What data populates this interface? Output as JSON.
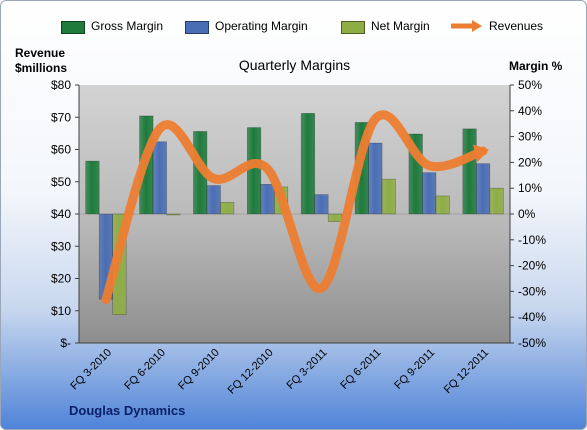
{
  "chart_data": {
    "type": "bar",
    "title": "Quarterly Margins",
    "company_label": "Douglas Dynamics",
    "left_axis_label": [
      "Revenue",
      "$millions"
    ],
    "right_axis_label": "Margin %",
    "categories": [
      "FQ 3-2010",
      "FQ 6-2010",
      "FQ 9-2010",
      "FQ 12-2010",
      "FQ 3-2011",
      "FQ 6-2011",
      "FQ 9-2011",
      "FQ 12-2011"
    ],
    "left_ticks": [
      "$-",
      "$10",
      "$20",
      "$30",
      "$40",
      "$50",
      "$60",
      "$70",
      "$80"
    ],
    "left_ylim": [
      0,
      80
    ],
    "right_ticks": [
      "-50%",
      "-40%",
      "-30%",
      "-20%",
      "-10%",
      "0%",
      "10%",
      "20%",
      "30%",
      "40%",
      "50%"
    ],
    "right_ylim": [
      -50,
      50
    ],
    "grid": false,
    "legend_position": "top",
    "series": [
      {
        "name": "Gross Margin",
        "axis": "right",
        "kind": "bar",
        "color": "#1e7b3c",
        "values": [
          20.5,
          38,
          32,
          33.5,
          39,
          35.5,
          31,
          33
        ]
      },
      {
        "name": "Operating Margin",
        "axis": "right",
        "kind": "bar",
        "color": "#4a6eb5",
        "values": [
          -33,
          28,
          11,
          11.5,
          7.5,
          27.5,
          16,
          19.5
        ]
      },
      {
        "name": "Net Margin",
        "axis": "right",
        "kind": "bar",
        "color": "#8fad45",
        "values": [
          -39,
          0,
          4.5,
          10.5,
          -3,
          13.5,
          7,
          10
        ]
      },
      {
        "name": "Revenues",
        "axis": "left",
        "kind": "line",
        "color": "#ed7d31",
        "values": [
          13.5,
          66.5,
          51,
          54,
          17,
          69.5,
          55,
          59.5
        ]
      }
    ]
  }
}
